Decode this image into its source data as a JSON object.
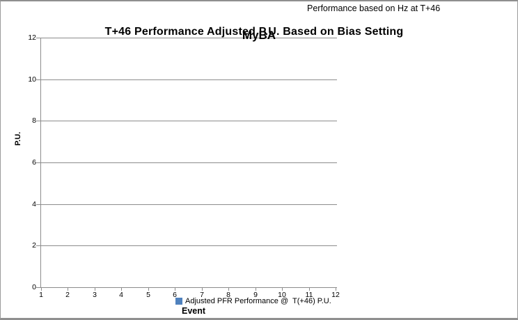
{
  "window": {
    "background": "#ffffff",
    "border_color": "#9b9b9b"
  },
  "header": {
    "note": "Performance based on Hz at T+46"
  },
  "chart_data": {
    "type": "scatter",
    "title": "T+46 Performance Adjusted P.U. Based on Bias Setting",
    "overlay_label": "MyBA",
    "xlabel": "Event",
    "ylabel": "P.U.",
    "xlim": [
      1,
      12
    ],
    "ylim": [
      0,
      12
    ],
    "x_ticks": [
      1,
      2,
      3,
      4,
      5,
      6,
      7,
      8,
      9,
      10,
      11,
      12
    ],
    "y_ticks": [
      0,
      2,
      4,
      6,
      8,
      10,
      12
    ],
    "grid": "horizontal-only",
    "legend_position": "bottom",
    "legend": {
      "entries": [
        {
          "label": "Adjusted PFR Performance @  T(+46) P.U.",
          "marker": "square",
          "color": "#4F81BD"
        }
      ]
    },
    "series": [
      {
        "name": "Adjusted PFR Performance @  T(+46) P.U.",
        "color": "#4F81BD",
        "points": []
      }
    ],
    "colors": {
      "gridline": "#8c8c8c",
      "axis": "#8c8c8c",
      "text": "#000000"
    }
  }
}
